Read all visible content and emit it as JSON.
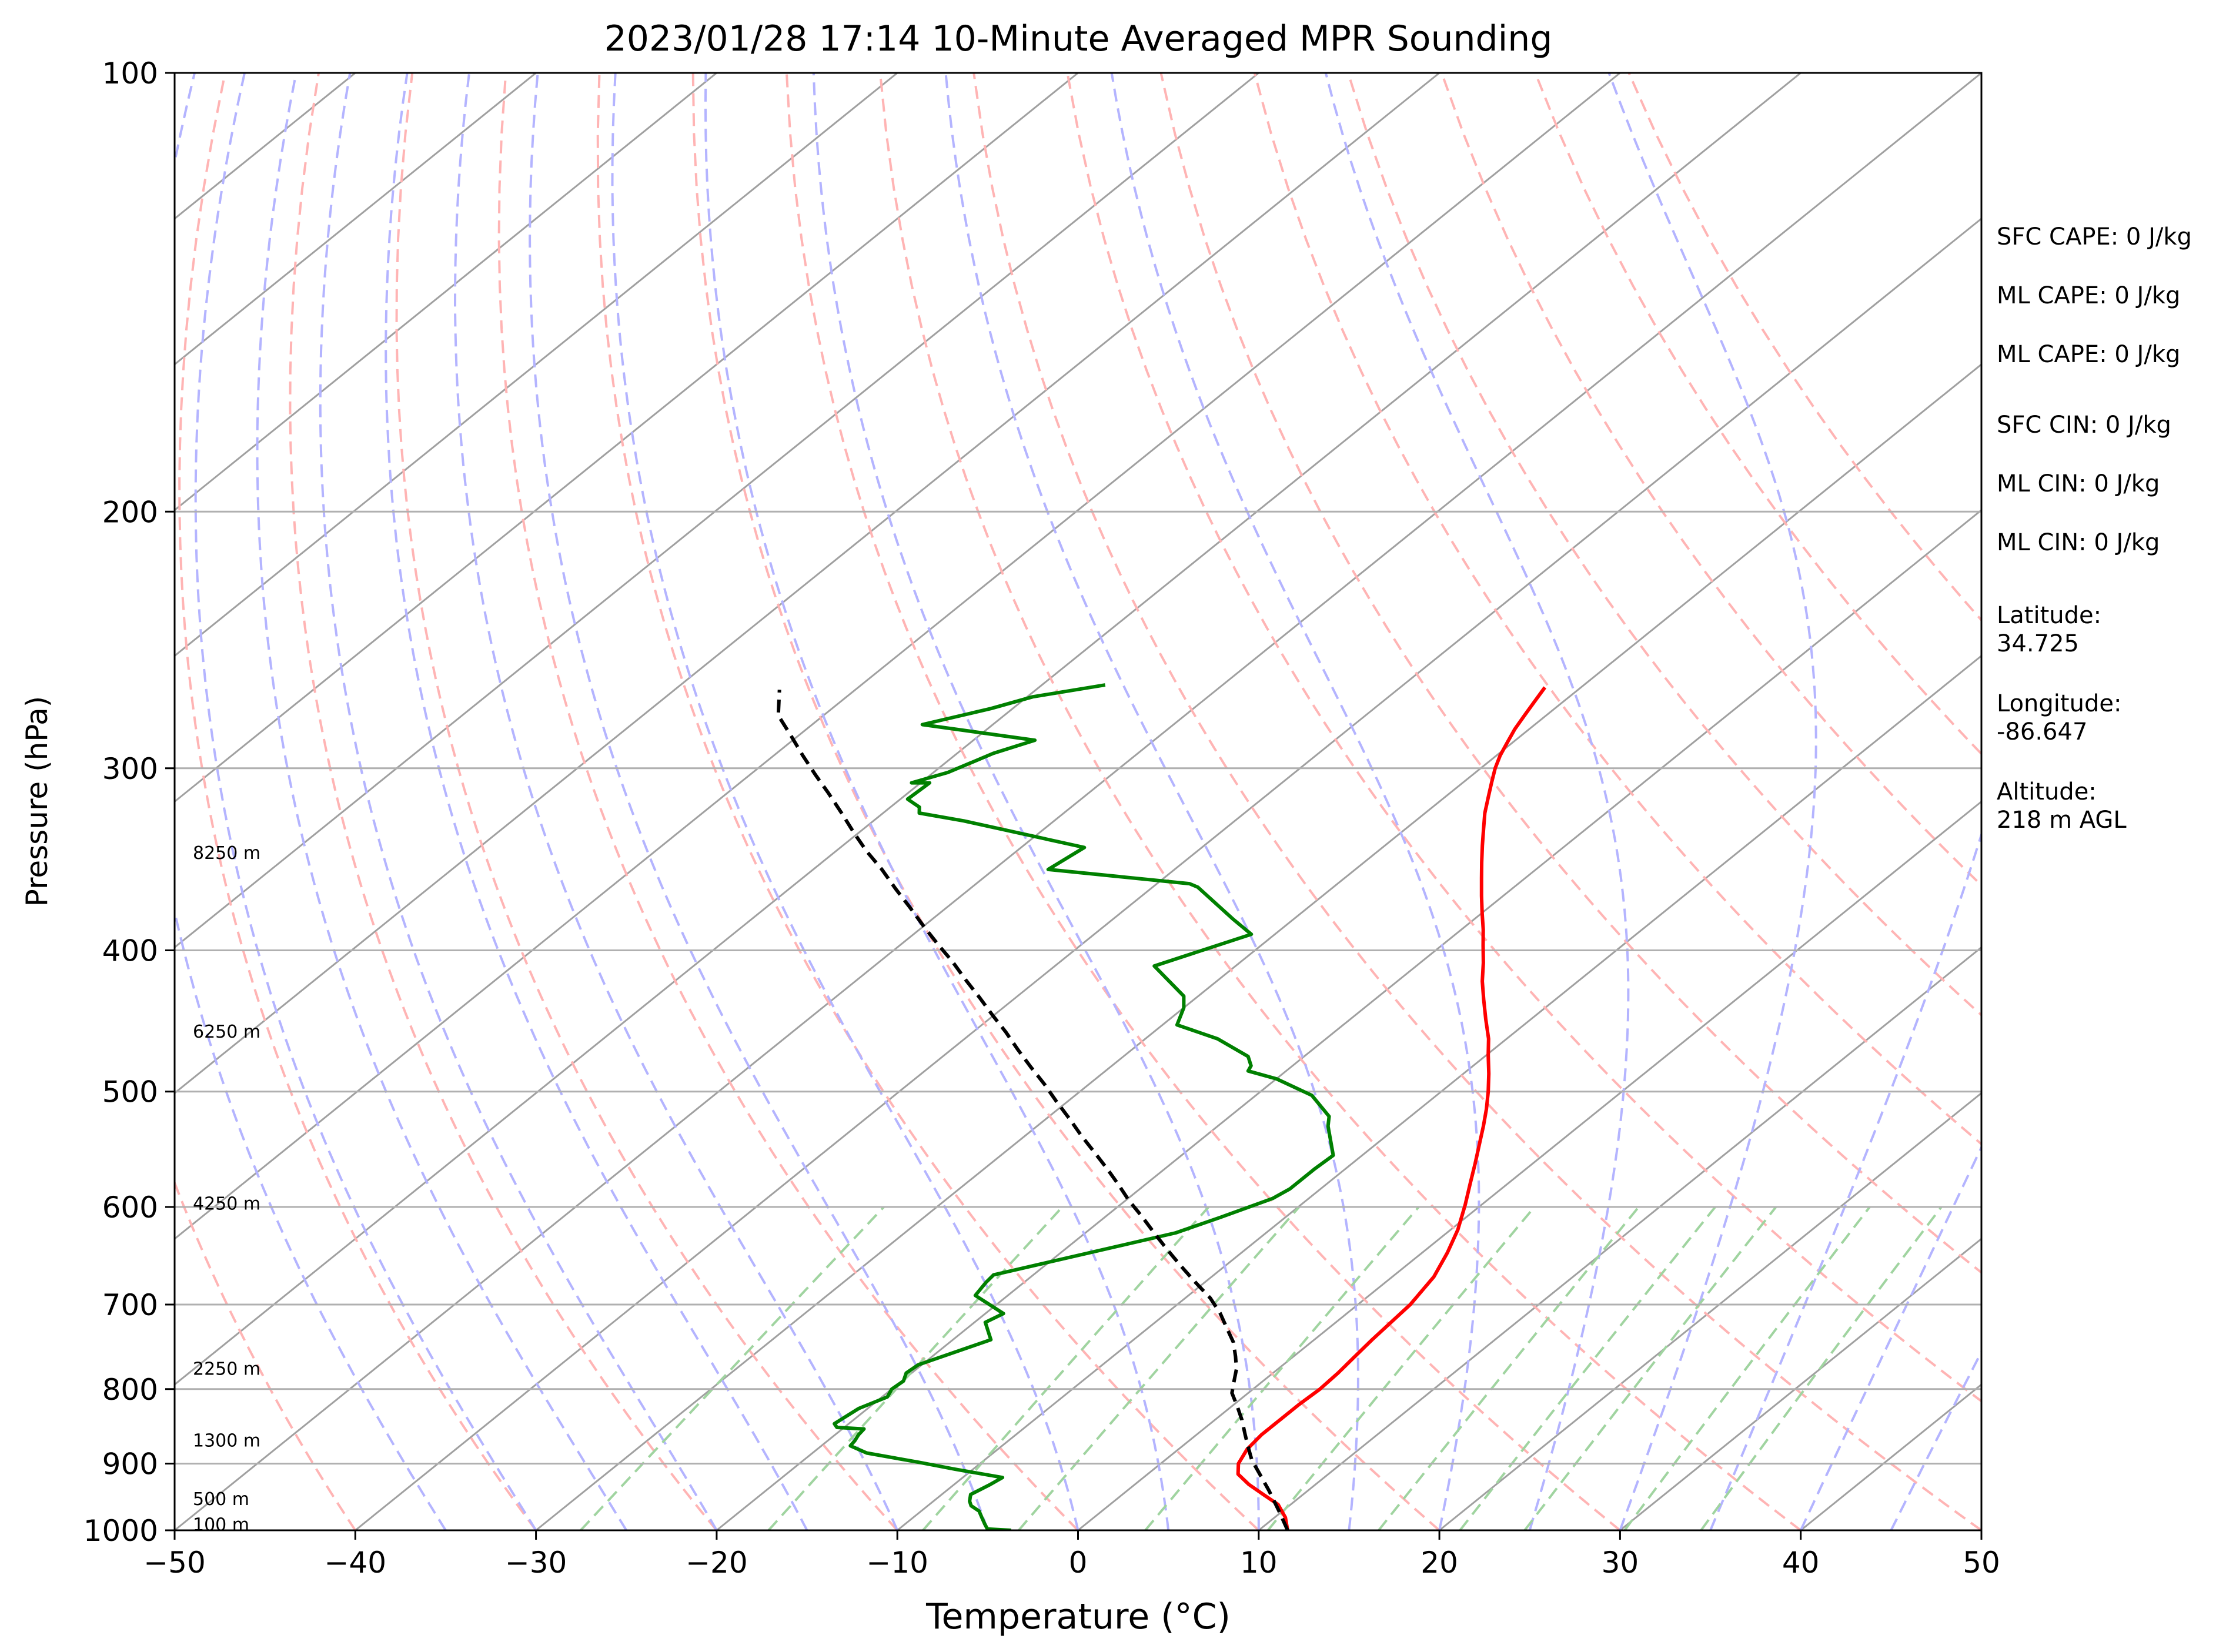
{
  "chart_data": {
    "type": "line",
    "title": "2023/01/28 17:14 10-Minute Averaged MPR Sounding",
    "xlabel": "Temperature (°C)",
    "ylabel": "Pressure (hPa)",
    "xlim": [
      -50,
      50
    ],
    "ylim": [
      1000,
      100
    ],
    "y_scale": "log",
    "x_ticks": [
      -50,
      -40,
      -30,
      -20,
      -10,
      0,
      10,
      20,
      30,
      40,
      50
    ],
    "x_tick_labels": [
      "−50",
      "−40",
      "−30",
      "−20",
      "−10",
      "0",
      "10",
      "20",
      "30",
      "40",
      "50"
    ],
    "y_ticks": [
      100,
      200,
      300,
      400,
      500,
      600,
      700,
      800,
      900,
      1000
    ],
    "y_tick_labels": [
      "100",
      "200",
      "300",
      "400",
      "500",
      "600",
      "700",
      "800",
      "900",
      "1000"
    ],
    "grid": true,
    "skew_ratio": 1.0,
    "colors": {
      "temperature": "#ff0000",
      "dewpoint": "#008000",
      "parcel": "#000000",
      "isotherm": "#a0a0a0",
      "dry_adiabat": "#ffb4b4",
      "moist_adiabat": "#b4b4ff",
      "mixing_ratio": "#a0d4a0"
    },
    "series": [
      {
        "key": "temperature",
        "style": "solid",
        "points": [
          [
            11.6,
            1000
          ],
          [
            10.6,
            980
          ],
          [
            9.3,
            960
          ],
          [
            7.8,
            945
          ],
          [
            6.3,
            930
          ],
          [
            5.0,
            915
          ],
          [
            4.3,
            900
          ],
          [
            3.8,
            880
          ],
          [
            3.6,
            860
          ],
          [
            3.6,
            840
          ],
          [
            3.6,
            820
          ],
          [
            3.7,
            800
          ],
          [
            3.6,
            780
          ],
          [
            3.4,
            760
          ],
          [
            3.2,
            740
          ],
          [
            2.9,
            700
          ],
          [
            2.3,
            670
          ],
          [
            1.4,
            645
          ],
          [
            0.4,
            622
          ],
          [
            -0.9,
            598
          ],
          [
            -2.1,
            578
          ],
          [
            -3.2,
            560
          ],
          [
            -4.3,
            543
          ],
          [
            -5.3,
            528
          ],
          [
            -6.3,
            514
          ],
          [
            -7.4,
            500
          ],
          [
            -8.6,
            486
          ],
          [
            -9.9,
            472
          ],
          [
            -11.0,
            460
          ],
          [
            -12.5,
            446
          ],
          [
            -14.0,
            432
          ],
          [
            -15.3,
            420
          ],
          [
            -16.5,
            408
          ],
          [
            -17.7,
            397
          ],
          [
            -18.8,
            387
          ],
          [
            -20.0,
            377
          ],
          [
            -21.2,
            367
          ],
          [
            -22.4,
            357
          ],
          [
            -23.5,
            348
          ],
          [
            -24.6,
            339
          ],
          [
            -25.7,
            330
          ],
          [
            -26.7,
            322
          ],
          [
            -27.6,
            314
          ],
          [
            -28.4,
            307
          ],
          [
            -29.2,
            300
          ],
          [
            -29.8,
            294
          ],
          [
            -30.3,
            288
          ],
          [
            -30.8,
            282
          ],
          [
            -31.2,
            276
          ],
          [
            -31.6,
            270
          ],
          [
            -32.0,
            264
          ]
        ]
      },
      {
        "key": "dewpoint",
        "style": "solid",
        "points": [
          [
            -3.7,
            1000
          ],
          [
            -5.1,
            998
          ],
          [
            -5.6,
            990
          ],
          [
            -6.2,
            980
          ],
          [
            -6.8,
            970
          ],
          [
            -7.6,
            962
          ],
          [
            -8.0,
            955
          ],
          [
            -8.4,
            945
          ],
          [
            -8.0,
            930
          ],
          [
            -7.8,
            920
          ],
          [
            -11.0,
            908
          ],
          [
            -13.5,
            898
          ],
          [
            -17.0,
            885
          ],
          [
            -18.4,
            875
          ],
          [
            -18.5,
            868
          ],
          [
            -18.7,
            860
          ],
          [
            -18.8,
            852
          ],
          [
            -20.4,
            850
          ],
          [
            -20.8,
            845
          ],
          [
            -20.5,
            825
          ],
          [
            -19.7,
            810
          ],
          [
            -20.0,
            800
          ],
          [
            -19.9,
            790
          ],
          [
            -20.3,
            780
          ],
          [
            -20.2,
            770
          ],
          [
            -17.9,
            740
          ],
          [
            -19.4,
            720
          ],
          [
            -19.0,
            710
          ],
          [
            -21.8,
            690
          ],
          [
            -22.1,
            676
          ],
          [
            -22.2,
            668
          ],
          [
            -15.0,
            625
          ],
          [
            -13.6,
            610
          ],
          [
            -12.0,
            592
          ],
          [
            -11.7,
            583
          ],
          [
            -11.7,
            565
          ],
          [
            -11.6,
            553
          ],
          [
            -13.9,
            528
          ],
          [
            -14.5,
            520
          ],
          [
            -16.9,
            503
          ],
          [
            -20.0,
            490
          ],
          [
            -22.1,
            484
          ],
          [
            -22.3,
            480
          ],
          [
            -23.1,
            473
          ],
          [
            -26.0,
            460
          ],
          [
            -29.2,
            450
          ],
          [
            -30.0,
            438
          ],
          [
            -30.8,
            430
          ],
          [
            -33.0,
            418
          ],
          [
            -34.5,
            410
          ],
          [
            -31.3,
            390
          ],
          [
            -33.3,
            381
          ],
          [
            -37.5,
            362
          ],
          [
            -38.2,
            360
          ],
          [
            -47.0,
            352
          ],
          [
            -46.5,
            340
          ],
          [
            -55.0,
            326
          ],
          [
            -58.0,
            322
          ],
          [
            -58.4,
            319
          ],
          [
            -59.6,
            315
          ],
          [
            -59.5,
            307
          ],
          [
            -60.5,
            307
          ],
          [
            -59.2,
            302
          ],
          [
            -58.0,
            293
          ],
          [
            -56.6,
            287
          ],
          [
            -63.9,
            280
          ],
          [
            -61.2,
            273
          ],
          [
            -59.7,
            268
          ],
          [
            -56.5,
            263
          ]
        ]
      },
      {
        "key": "parcel",
        "style": "dashed",
        "points": [
          [
            11.6,
            1000
          ],
          [
            9.8,
            970
          ],
          [
            7.9,
            940
          ],
          [
            6.2,
            915
          ],
          [
            4.8,
            895
          ],
          [
            3.9,
            880
          ],
          [
            2.7,
            860
          ],
          [
            1.5,
            840
          ],
          [
            0.3,
            822
          ],
          [
            -0.9,
            805
          ],
          [
            -1.6,
            790
          ],
          [
            -2.3,
            775
          ],
          [
            -3.2,
            760
          ],
          [
            -4.3,
            743
          ],
          [
            -5.6,
            727
          ],
          [
            -7.0,
            710
          ],
          [
            -8.6,
            693
          ],
          [
            -10.5,
            676
          ],
          [
            -12.4,
            659
          ],
          [
            -14.3,
            642
          ],
          [
            -16.2,
            625
          ],
          [
            -18.0,
            609
          ],
          [
            -19.8,
            594
          ],
          [
            -21.5,
            579
          ],
          [
            -23.3,
            564
          ],
          [
            -25.2,
            549
          ],
          [
            -26.9,
            536
          ],
          [
            -28.7,
            522
          ],
          [
            -30.6,
            508
          ],
          [
            -32.5,
            494
          ],
          [
            -34.4,
            481
          ],
          [
            -36.3,
            468
          ],
          [
            -38.2,
            455
          ],
          [
            -40.1,
            443
          ],
          [
            -42.0,
            431
          ],
          [
            -44.0,
            419
          ],
          [
            -46.0,
            407
          ],
          [
            -48.0,
            396
          ],
          [
            -50.0,
            385
          ],
          [
            -52.0,
            374
          ],
          [
            -54.1,
            363
          ],
          [
            -56.2,
            352
          ],
          [
            -58.3,
            342
          ],
          [
            -60.3,
            332
          ],
          [
            -62.3,
            322
          ],
          [
            -64.4,
            312
          ],
          [
            -66.4,
            303
          ],
          [
            -68.4,
            294
          ],
          [
            -70.4,
            285
          ],
          [
            -72.5,
            276
          ],
          [
            -74.2,
            265
          ]
        ]
      }
    ],
    "isotherms": [
      -150,
      -140,
      -130,
      -120,
      -110,
      -100,
      -90,
      -80,
      -70,
      -60,
      -50,
      -40,
      -30,
      -20,
      -10,
      0,
      10,
      20,
      30,
      40,
      50
    ],
    "dry_adiabats_C": [
      -80,
      -70,
      -60,
      -50,
      -40,
      -30,
      -20,
      -10,
      0,
      10,
      20,
      30,
      40,
      50,
      60,
      70,
      80,
      90,
      100,
      110,
      120
    ],
    "moist_adiabats_C": [
      -35,
      -30,
      -25,
      -20,
      -15,
      -10,
      -5,
      0,
      5,
      10,
      15,
      20,
      25,
      30,
      35,
      40,
      45
    ],
    "mixing_ratios_gkg": [
      0.4,
      1,
      2,
      3,
      5,
      8,
      12,
      16,
      20,
      28,
      36
    ],
    "height_labels": [
      {
        "text": "100 m",
        "p": 991
      },
      {
        "text": "500 m",
        "p": 952
      },
      {
        "text": "1300 m",
        "p": 868
      },
      {
        "text": "2250 m",
        "p": 775
      },
      {
        "text": "4250 m",
        "p": 597
      },
      {
        "text": "6250 m",
        "p": 455
      },
      {
        "text": "8250 m",
        "p": 343
      }
    ],
    "annotations": [
      "SFC CAPE: 0 J/kg",
      "ML CAPE: 0 J/kg",
      "ML CAPE: 0 J/kg",
      "SFC CIN: 0 J/kg",
      "ML CIN: 0 J/kg",
      "ML CIN: 0 J/kg"
    ],
    "station": {
      "latitude_label": "Latitude:",
      "latitude": "34.725",
      "longitude_label": "Longitude:",
      "longitude": "-86.647",
      "altitude_label": "Altitude:",
      "altitude": "218 m AGL"
    }
  }
}
